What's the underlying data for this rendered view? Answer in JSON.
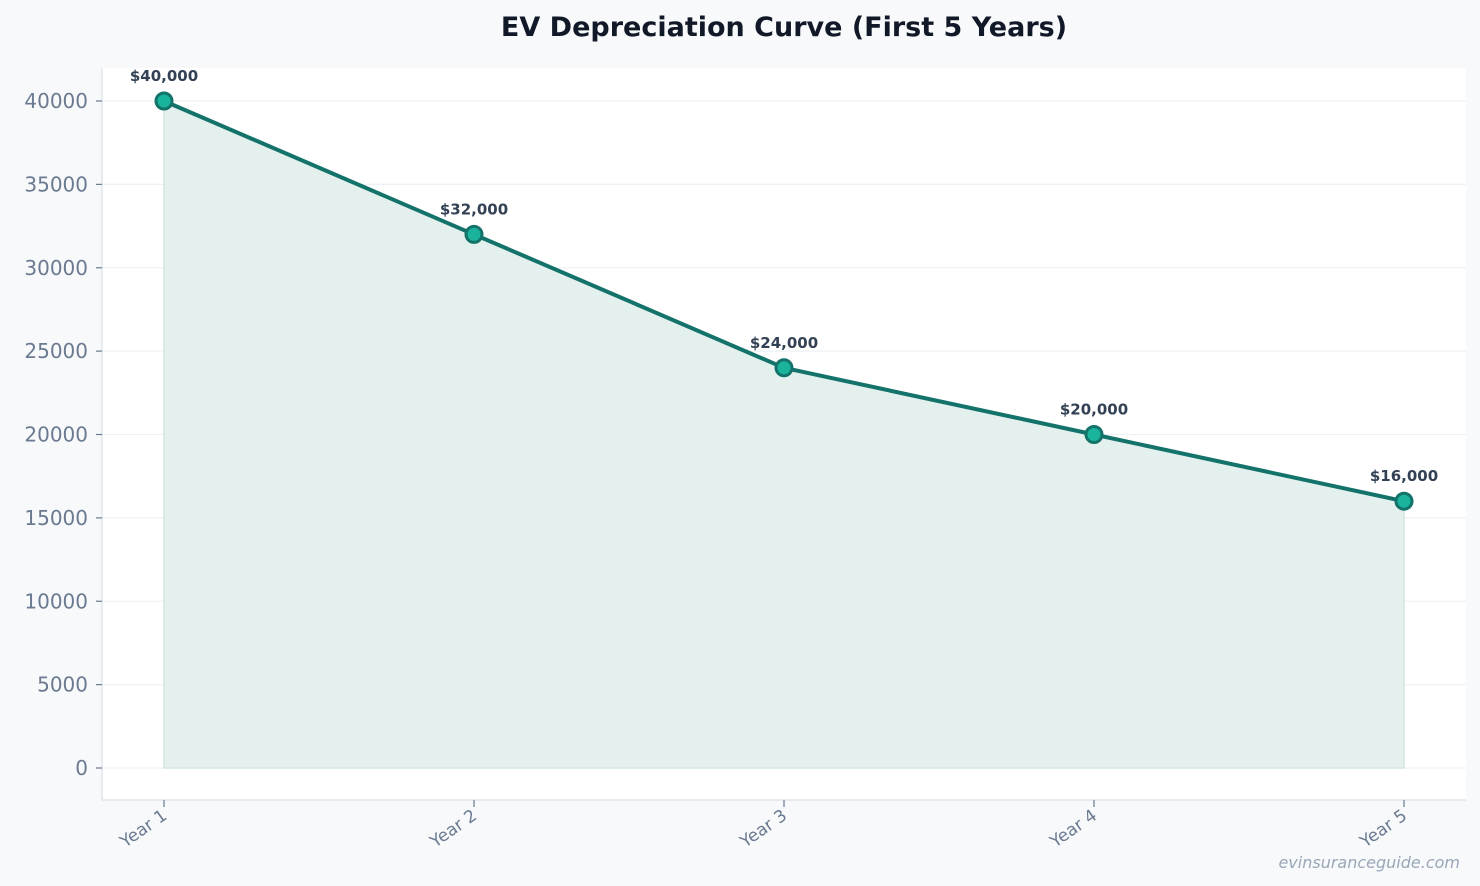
{
  "chart_data": {
    "type": "area",
    "title": "EV Depreciation Curve (First 5 Years)",
    "categories": [
      "Year 1",
      "Year 2",
      "Year 3",
      "Year 4",
      "Year 5"
    ],
    "values": [
      40000,
      32000,
      24000,
      20000,
      16000
    ],
    "data_labels": [
      "$40,000",
      "$32,000",
      "$24,000",
      "$20,000",
      "$16,000"
    ],
    "y_ticks": [
      0,
      5000,
      10000,
      15000,
      20000,
      25000,
      30000,
      35000,
      40000
    ],
    "ylim": [
      -2000,
      42000
    ],
    "grid": "horizontal",
    "colors": {
      "line": "#13736a",
      "marker_fill": "#1ab39b",
      "area_fill": "#e4f0ed",
      "tick_text": "#6b7a90",
      "label_text": "#334155",
      "title_text": "#111827",
      "grid": "#eef2f6",
      "axis": "#dfe5ec",
      "watermark": "#9aa7b7"
    }
  },
  "watermark": "evinsuranceguide.com"
}
